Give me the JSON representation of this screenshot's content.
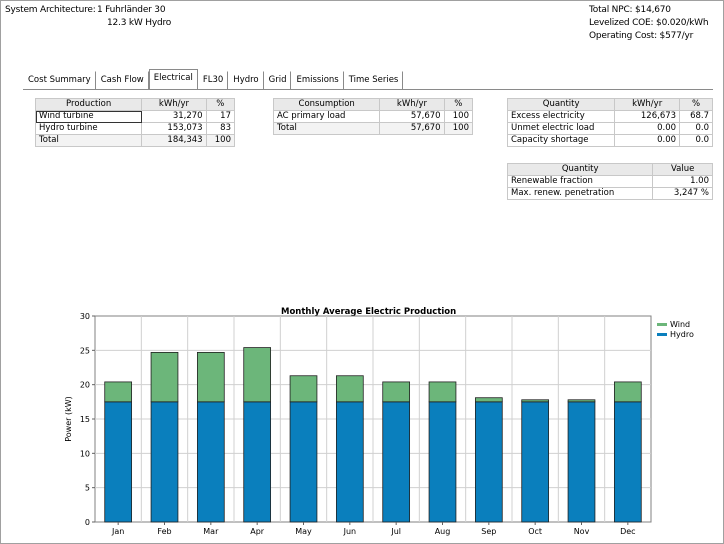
{
  "summary": {
    "arch_label": "System Architecture:",
    "arch_line1": "1 Fuhrländer 30",
    "arch_line2": "12.3 kW Hydro",
    "npc": "Total NPC: $14,670",
    "coe": "Levelized COE: $0.020/kWh",
    "opcost": "Operating Cost: $577/yr"
  },
  "tabs": [
    {
      "label": "Cost Summary",
      "active": false
    },
    {
      "label": "Cash Flow",
      "active": false
    },
    {
      "label": "Electrical",
      "active": true
    },
    {
      "label": "FL30",
      "active": false
    },
    {
      "label": "Hydro",
      "active": false
    },
    {
      "label": "Grid",
      "active": false
    },
    {
      "label": "Emissions",
      "active": false
    },
    {
      "label": "Time Series",
      "active": false
    }
  ],
  "production": {
    "headers": [
      "Production",
      "kWh/yr",
      "%"
    ],
    "rows": [
      {
        "name": "Wind turbine",
        "kwh": "31,270",
        "pct": "17"
      },
      {
        "name": "Hydro turbine",
        "kwh": "153,073",
        "pct": "83"
      },
      {
        "name": "Total",
        "kwh": "184,343",
        "pct": "100"
      }
    ]
  },
  "consumption": {
    "headers": [
      "Consumption",
      "kWh/yr",
      "%"
    ],
    "rows": [
      {
        "name": "AC primary load",
        "kwh": "57,670",
        "pct": "100"
      },
      {
        "name": "Total",
        "kwh": "57,670",
        "pct": "100"
      }
    ]
  },
  "quantity": {
    "headers": [
      "Quantity",
      "kWh/yr",
      "%"
    ],
    "rows": [
      {
        "name": "Excess electricity",
        "kwh": "126,673",
        "pct": "68.7"
      },
      {
        "name": "Unmet electric load",
        "kwh": "0.00",
        "pct": "0.0"
      },
      {
        "name": "Capacity shortage",
        "kwh": "0.00",
        "pct": "0.0"
      }
    ]
  },
  "quantity2": {
    "headers": [
      "Quantity",
      "Value"
    ],
    "rows": [
      {
        "name": "Renewable fraction",
        "value": "1.00"
      },
      {
        "name": "Max. renew. penetration",
        "value": "3,247 %"
      }
    ]
  },
  "chart_data": {
    "type": "bar",
    "stacked": true,
    "title": "Monthly Average Electric Production",
    "ylabel": "Power (kW)",
    "xlabel": "",
    "ylim": [
      0,
      30
    ],
    "yticks": [
      0,
      5,
      10,
      15,
      20,
      25,
      30
    ],
    "categories": [
      "Jan",
      "Feb",
      "Mar",
      "Apr",
      "May",
      "Jun",
      "Jul",
      "Aug",
      "Sep",
      "Oct",
      "Nov",
      "Dec"
    ],
    "series": [
      {
        "name": "Hydro",
        "color": "#0a7fbd",
        "values": [
          17.5,
          17.5,
          17.5,
          17.5,
          17.5,
          17.5,
          17.5,
          17.5,
          17.5,
          17.5,
          17.5,
          17.5
        ]
      },
      {
        "name": "Wind",
        "color": "#6cb67a",
        "values": [
          2.9,
          7.2,
          7.2,
          7.9,
          3.8,
          3.8,
          2.9,
          2.9,
          0.6,
          0.3,
          0.3,
          2.9
        ]
      }
    ],
    "legend": "top-right",
    "grid": true
  }
}
